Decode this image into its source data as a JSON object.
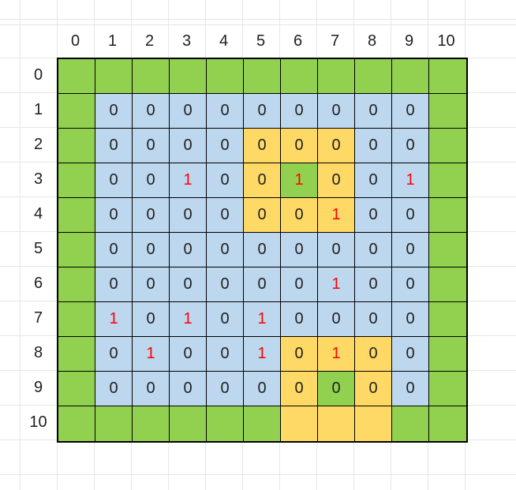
{
  "colors": {
    "green": "#92D050",
    "blue": "#BDD7EE",
    "yellow": "#FFD966",
    "red_text": "#FF0000",
    "dark_text": "#202020",
    "table_border": "#000000",
    "sheet_gridline": "#E6E6E6"
  },
  "headers": {
    "cols": [
      "0",
      "1",
      "2",
      "3",
      "4",
      "5",
      "6",
      "7",
      "8",
      "9",
      "10"
    ],
    "rows": [
      "0",
      "1",
      "2",
      "3",
      "4",
      "5",
      "6",
      "7",
      "8",
      "9",
      "10"
    ]
  },
  "grid": {
    "legend": {
      "g": "green cell",
      "b": "blue cell",
      "y": "yellow cell",
      "r": "red text"
    },
    "cells": [
      [
        "g-",
        "g-",
        "g-",
        "g-",
        "g-",
        "g-",
        "g-",
        "g-",
        "g-",
        "g-",
        "g-"
      ],
      [
        "g-",
        "b0",
        "b0",
        "b0",
        "b0",
        "b0",
        "b0",
        "b0",
        "b0",
        "b0",
        "g-"
      ],
      [
        "g-",
        "b0",
        "b0",
        "b0",
        "b0",
        "y0",
        "y0",
        "y0",
        "b0",
        "b0",
        "g-"
      ],
      [
        "g-",
        "b0",
        "b0",
        "b1r",
        "b0",
        "y0",
        "g1r",
        "y0",
        "b0",
        "b1r",
        "g-"
      ],
      [
        "g-",
        "b0",
        "b0",
        "b0",
        "b0",
        "y0",
        "y0",
        "y1r",
        "b0",
        "b0",
        "g-"
      ],
      [
        "g-",
        "b0",
        "b0",
        "b0",
        "b0",
        "b0",
        "b0",
        "b0",
        "b0",
        "b0",
        "g-"
      ],
      [
        "g-",
        "b0",
        "b0",
        "b0",
        "b0",
        "b0",
        "b0",
        "b1r",
        "b0",
        "b0",
        "g-"
      ],
      [
        "g-",
        "b1r",
        "b0",
        "b1r",
        "b0",
        "b1r",
        "b0",
        "b0",
        "b0",
        "b0",
        "g-"
      ],
      [
        "g-",
        "b0",
        "b1r",
        "b0",
        "b0",
        "b1r",
        "y0",
        "y1r",
        "y0",
        "b0",
        "g-"
      ],
      [
        "g-",
        "b0",
        "b0",
        "b0",
        "b0",
        "b0",
        "y0",
        "g0",
        "y0",
        "b0",
        "g-"
      ],
      [
        "g-",
        "g-",
        "g-",
        "g-",
        "g-",
        "g-",
        "y-",
        "y-",
        "y-",
        "g-",
        "g-"
      ]
    ]
  }
}
